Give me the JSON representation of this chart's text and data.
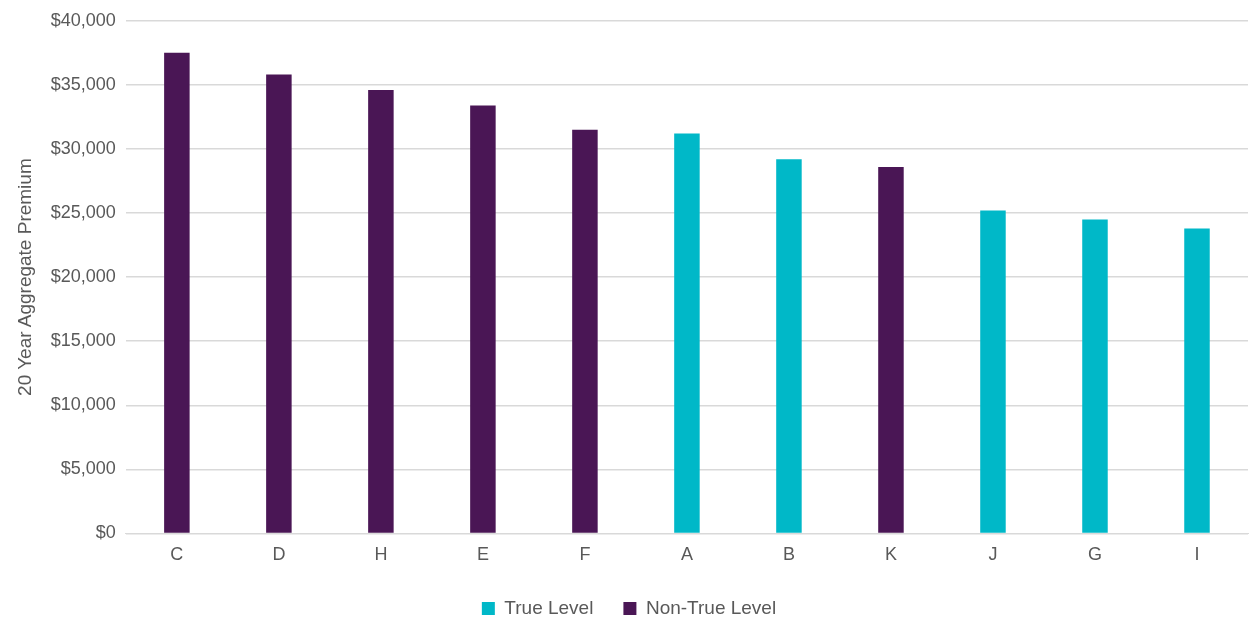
{
  "chart_data": {
    "type": "bar",
    "stacked": true,
    "ylabel": "20 Year Aggregate Premium",
    "categories": [
      "C",
      "D",
      "H",
      "E",
      "F",
      "A",
      "B",
      "K",
      "J",
      "G",
      "I"
    ],
    "series": [
      {
        "name": "True Level",
        "color": "#00b8c8",
        "values": [
          null,
          null,
          null,
          null,
          null,
          31200,
          29200,
          null,
          25200,
          24500,
          23800
        ]
      },
      {
        "name": "Non-True Level",
        "color": "#4a1655",
        "values": [
          37500,
          35800,
          34600,
          33400,
          31500,
          null,
          null,
          28600,
          null,
          null,
          null
        ]
      }
    ],
    "ylim": [
      0,
      40000
    ],
    "yticks": [
      {
        "value": 0,
        "label": "$0"
      },
      {
        "value": 5000,
        "label": "$5,000"
      },
      {
        "value": 10000,
        "label": "$10,000"
      },
      {
        "value": 15000,
        "label": "$15,000"
      },
      {
        "value": 20000,
        "label": "$20,000"
      },
      {
        "value": 25000,
        "label": "$25,000"
      },
      {
        "value": 30000,
        "label": "$30,000"
      },
      {
        "value": 35000,
        "label": "$35,000"
      },
      {
        "value": 40000,
        "label": "$40,000"
      }
    ],
    "grid": "y",
    "legend": "bottom"
  }
}
